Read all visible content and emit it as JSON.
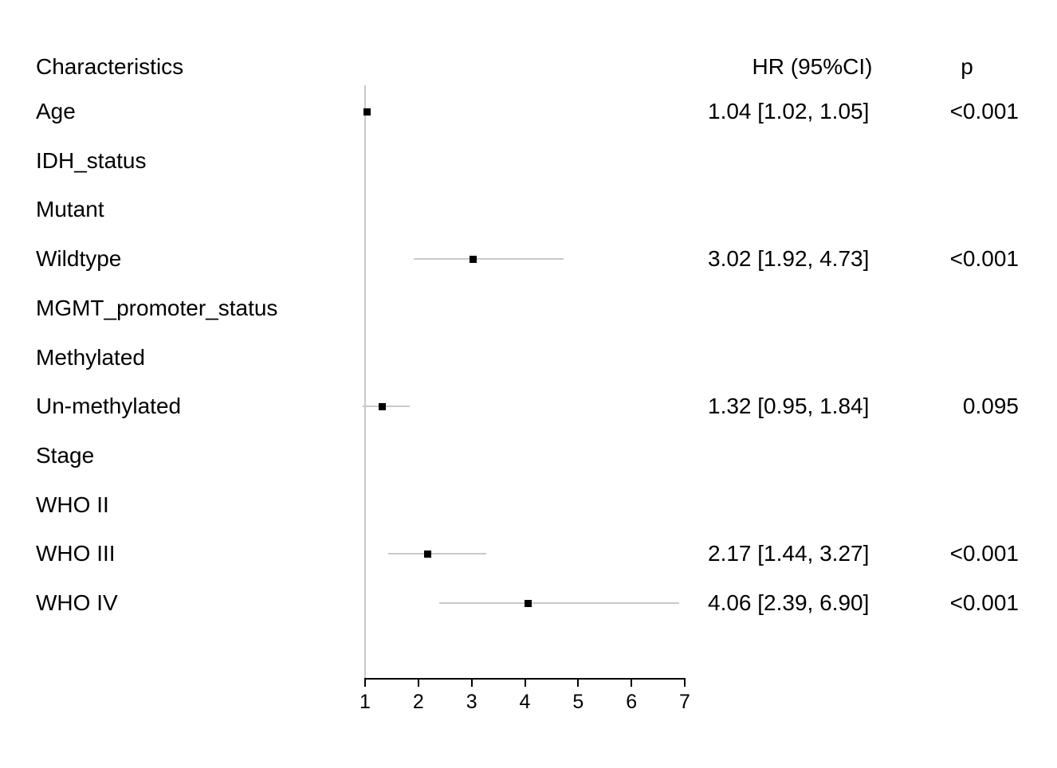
{
  "headers": {
    "characteristics": "Characteristics",
    "hr_ci": "HR (95%CI)",
    "p": "p"
  },
  "colors": {
    "marker": "#000000",
    "ci_line": "#c9c9c9",
    "reference_line": "#c9c9c9",
    "axis": "#000000",
    "text": "#000000"
  },
  "chart_data": {
    "type": "scatter",
    "variant": "forest_plot",
    "title": "",
    "xlabel": "",
    "ylabel": "",
    "legend": null,
    "grid": false,
    "axis": {
      "min": 1,
      "max": 7,
      "ticks": [
        1,
        2,
        3,
        4,
        5,
        6,
        7
      ],
      "reference_line": 1
    },
    "columns": [
      "Characteristics",
      "HR (95%CI)",
      "p"
    ],
    "rows": [
      {
        "label": "Age",
        "hr": 1.04,
        "lo": 1.02,
        "hi": 1.05,
        "hr_text": "1.04 [1.02, 1.05]",
        "p_text": "<0.001"
      },
      {
        "label": "IDH_status",
        "hr": null,
        "lo": null,
        "hi": null,
        "hr_text": "",
        "p_text": ""
      },
      {
        "label": "Mutant",
        "hr": null,
        "lo": null,
        "hi": null,
        "hr_text": "",
        "p_text": ""
      },
      {
        "label": "Wildtype",
        "hr": 3.02,
        "lo": 1.92,
        "hi": 4.73,
        "hr_text": "3.02 [1.92, 4.73]",
        "p_text": "<0.001"
      },
      {
        "label": "MGMT_promoter_status",
        "hr": null,
        "lo": null,
        "hi": null,
        "hr_text": "",
        "p_text": ""
      },
      {
        "label": "Methylated",
        "hr": null,
        "lo": null,
        "hi": null,
        "hr_text": "",
        "p_text": ""
      },
      {
        "label": "Un-methylated",
        "hr": 1.32,
        "lo": 0.95,
        "hi": 1.84,
        "hr_text": "1.32 [0.95, 1.84]",
        "p_text": "0.095"
      },
      {
        "label": "Stage",
        "hr": null,
        "lo": null,
        "hi": null,
        "hr_text": "",
        "p_text": ""
      },
      {
        "label": "WHO II",
        "hr": null,
        "lo": null,
        "hi": null,
        "hr_text": "",
        "p_text": ""
      },
      {
        "label": "WHO III",
        "hr": 2.17,
        "lo": 1.44,
        "hi": 3.27,
        "hr_text": "2.17 [1.44, 3.27]",
        "p_text": "<0.001"
      },
      {
        "label": "WHO IV",
        "hr": 4.06,
        "lo": 2.39,
        "hi": 6.9,
        "hr_text": "4.06 [2.39, 6.90]",
        "p_text": "<0.001"
      }
    ]
  }
}
